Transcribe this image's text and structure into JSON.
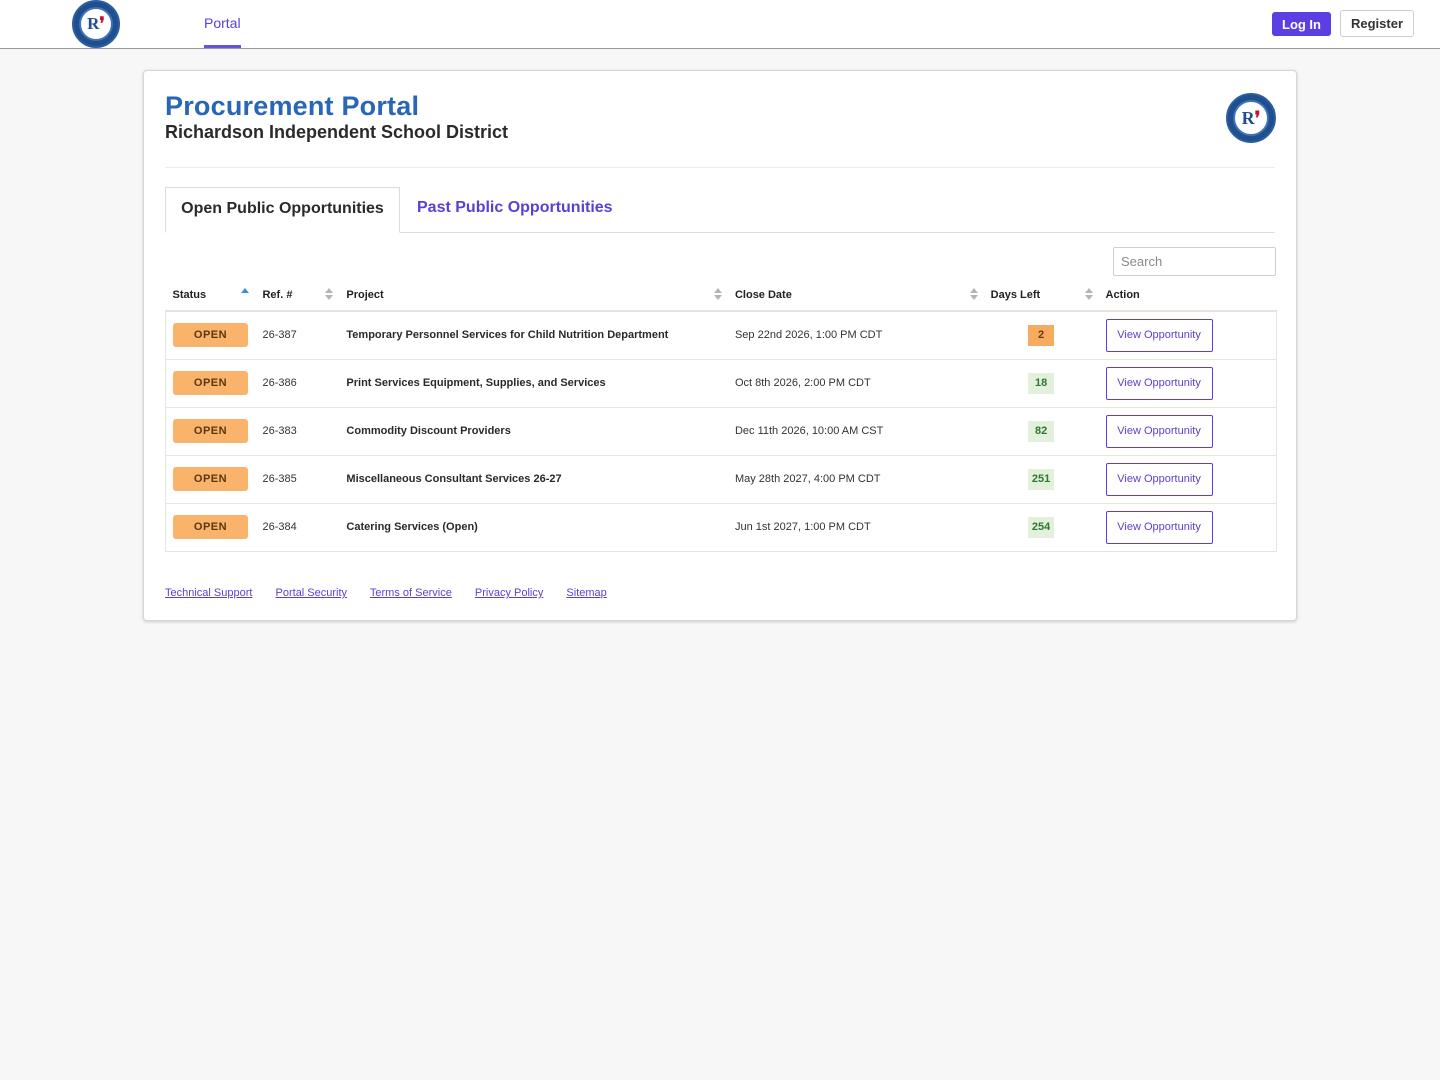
{
  "nav": {
    "logo_text": "R",
    "portal_label": "Portal",
    "login_label": "Log In",
    "register_label": "Register"
  },
  "header": {
    "title": "Procurement Portal",
    "subtitle": "Richardson Independent School District"
  },
  "tabs": {
    "open_label": "Open Public Opportunities",
    "past_label": "Past Public Opportunities"
  },
  "search": {
    "placeholder": "Search",
    "value": ""
  },
  "table": {
    "columns": {
      "status": "Status",
      "ref": "Ref. #",
      "project": "Project",
      "close_date": "Close Date",
      "days_left": "Days Left",
      "action": "Action"
    },
    "rows": [
      {
        "status": "OPEN",
        "ref": "26-387",
        "project": "Temporary Personnel Services for Child Nutrition Department",
        "close_date": "Sep 22nd 2026, 1:00 PM CDT",
        "days_left": "2",
        "action": "View Opportunity"
      },
      {
        "status": "OPEN",
        "ref": "26-386",
        "project": "Print Services Equipment, Supplies, and Services",
        "close_date": "Oct 8th 2026, 2:00 PM CDT",
        "days_left": "18",
        "action": "View Opportunity"
      },
      {
        "status": "OPEN",
        "ref": "26-383",
        "project": "Commodity Discount Providers",
        "close_date": "Dec 11th 2026, 10:00 AM CST",
        "days_left": "82",
        "action": "View Opportunity"
      },
      {
        "status": "OPEN",
        "ref": "26-385",
        "project": "Miscellaneous Consultant Services 26-27",
        "close_date": "May 28th 2027, 4:00 PM CDT",
        "days_left": "251",
        "action": "View Opportunity"
      },
      {
        "status": "OPEN",
        "ref": "26-384",
        "project": "Catering Services (Open)",
        "close_date": "Jun 1st 2027, 1:00 PM CDT",
        "days_left": "254",
        "action": "View Opportunity"
      }
    ]
  },
  "footer": {
    "technical_support": "Technical Support",
    "portal_security": "Portal Security",
    "terms": "Terms of Service",
    "privacy": "Privacy Policy",
    "sitemap": "Sitemap"
  },
  "colors": {
    "accent": "#5b3fe3",
    "title_blue": "#2866b8",
    "open_badge": "#f9b36a",
    "days_warn": "#f7ab5e",
    "days_ok": "#e2f0dc"
  }
}
